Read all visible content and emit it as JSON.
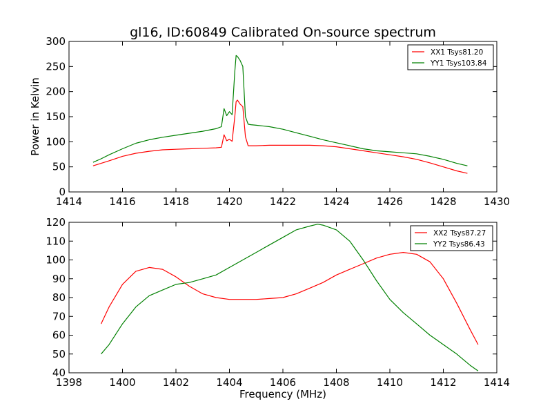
{
  "figure": {
    "title": "gl16, ID:60849 Calibrated On-source spectrum"
  },
  "chart_data": [
    {
      "type": "line",
      "title": "gl16, ID:60849 Calibrated On-source spectrum",
      "xlabel": "",
      "ylabel": "Power in Kelvin",
      "xlim": [
        1414,
        1430
      ],
      "ylim": [
        0,
        300
      ],
      "xticks": [
        1414,
        1416,
        1418,
        1420,
        1422,
        1424,
        1426,
        1428,
        1430
      ],
      "yticks": [
        0,
        50,
        100,
        150,
        200,
        250,
        300
      ],
      "grid": false,
      "legend": "top-right",
      "series": [
        {
          "name": "XX1 Tsys81.20",
          "color": "#ff0000",
          "x": [
            1414.9,
            1415.2,
            1415.5,
            1416.0,
            1416.5,
            1417.0,
            1417.5,
            1418.0,
            1418.5,
            1419.0,
            1419.5,
            1419.7,
            1419.8,
            1419.9,
            1420.0,
            1420.1,
            1420.2,
            1420.25,
            1420.3,
            1420.4,
            1420.5,
            1420.6,
            1420.7,
            1420.8,
            1421.0,
            1421.5,
            1422.0,
            1422.5,
            1423.0,
            1423.5,
            1424.0,
            1424.5,
            1425.0,
            1425.5,
            1426.0,
            1426.5,
            1427.0,
            1427.5,
            1428.0,
            1428.5,
            1428.9
          ],
          "y": [
            52,
            57,
            62,
            71,
            77,
            81,
            84,
            85,
            86,
            87,
            88,
            89,
            114,
            102,
            105,
            101,
            150,
            180,
            183,
            175,
            170,
            110,
            92,
            92,
            92,
            93,
            93,
            93,
            93,
            92,
            90,
            86,
            82,
            78,
            74,
            70,
            65,
            58,
            50,
            42,
            37
          ]
        },
        {
          "name": "YY1 Tsys103.84",
          "color": "#008000",
          "x": [
            1414.9,
            1415.2,
            1415.5,
            1416.0,
            1416.5,
            1417.0,
            1417.5,
            1418.0,
            1418.5,
            1419.0,
            1419.5,
            1419.7,
            1419.8,
            1419.9,
            1420.0,
            1420.1,
            1420.2,
            1420.25,
            1420.3,
            1420.4,
            1420.5,
            1420.6,
            1420.7,
            1420.8,
            1421.0,
            1421.5,
            1422.0,
            1422.5,
            1423.0,
            1423.5,
            1424.0,
            1424.5,
            1425.0,
            1425.5,
            1426.0,
            1426.5,
            1427.0,
            1427.5,
            1428.0,
            1428.5,
            1428.9
          ],
          "y": [
            59,
            66,
            74,
            86,
            97,
            104,
            109,
            113,
            117,
            121,
            126,
            130,
            166,
            152,
            160,
            154,
            240,
            272,
            270,
            262,
            250,
            150,
            135,
            134,
            133,
            130,
            125,
            118,
            111,
            104,
            98,
            92,
            86,
            82,
            80,
            78,
            76,
            71,
            65,
            57,
            52
          ]
        }
      ]
    },
    {
      "type": "line",
      "title": "",
      "xlabel": "Frequency (MHz)",
      "ylabel": "",
      "xlim": [
        1398,
        1414
      ],
      "ylim": [
        40,
        120
      ],
      "xticks": [
        1398,
        1400,
        1402,
        1404,
        1406,
        1408,
        1410,
        1412,
        1414
      ],
      "yticks": [
        40,
        50,
        60,
        70,
        80,
        90,
        100,
        110,
        120
      ],
      "grid": false,
      "legend": "top-right",
      "series": [
        {
          "name": "XX2 Tsys87.27",
          "color": "#ff0000",
          "x": [
            1399.2,
            1399.5,
            1400.0,
            1400.5,
            1401.0,
            1401.5,
            1402.0,
            1402.5,
            1403.0,
            1403.5,
            1404.0,
            1404.5,
            1405.0,
            1405.5,
            1406.0,
            1406.5,
            1407.0,
            1407.5,
            1408.0,
            1408.5,
            1409.0,
            1409.5,
            1410.0,
            1410.5,
            1411.0,
            1411.5,
            1412.0,
            1412.5,
            1413.0,
            1413.3
          ],
          "y": [
            66,
            75,
            87,
            94,
            96,
            95,
            91,
            86,
            82,
            80,
            79,
            79,
            79,
            79.5,
            80,
            82,
            85,
            88,
            92,
            95,
            98,
            101,
            103,
            104,
            103,
            99,
            90,
            77,
            63,
            55
          ]
        },
        {
          "name": "YY2 Tsys86.43",
          "color": "#008000",
          "x": [
            1399.2,
            1399.5,
            1400.0,
            1400.5,
            1401.0,
            1401.5,
            1402.0,
            1402.5,
            1403.0,
            1403.5,
            1404.0,
            1404.5,
            1405.0,
            1405.5,
            1406.0,
            1406.5,
            1407.0,
            1407.3,
            1407.5,
            1408.0,
            1408.5,
            1409.0,
            1409.5,
            1410.0,
            1410.5,
            1411.0,
            1411.5,
            1412.0,
            1412.5,
            1413.0,
            1413.3
          ],
          "y": [
            50,
            55,
            66,
            75,
            81,
            84,
            87,
            88,
            90,
            92,
            96,
            100,
            104,
            108,
            112,
            116,
            118,
            119,
            118.5,
            116,
            110,
            100,
            89,
            79,
            72,
            66,
            60,
            55,
            50,
            44,
            41
          ]
        }
      ]
    }
  ]
}
